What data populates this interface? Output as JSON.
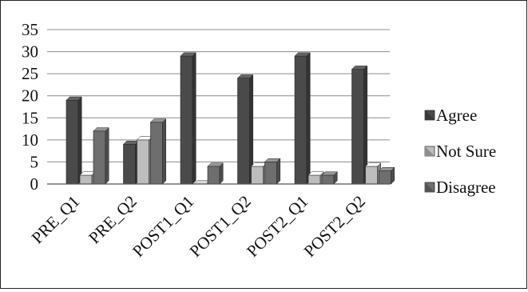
{
  "chart_data": {
    "type": "bar",
    "categories": [
      "PRE_Q1",
      "PRE_Q2",
      "POST1_Q1",
      "POST1_Q2",
      "POST2_Q1",
      "POST2_Q2"
    ],
    "series": [
      {
        "name": "Agree",
        "values": [
          19,
          9,
          29,
          24,
          29,
          26
        ],
        "color": "#4a4a4a"
      },
      {
        "name": "Not Sure",
        "values": [
          2,
          10,
          0,
          4,
          2,
          4
        ],
        "color": "#bdbdbd"
      },
      {
        "name": "Disagree",
        "values": [
          12,
          14,
          4,
          5,
          2,
          3
        ],
        "color": "#6e6e6e"
      }
    ],
    "ylim": [
      0,
      35
    ],
    "yticks": [
      0,
      5,
      10,
      15,
      20,
      25,
      30,
      35
    ],
    "grid": true,
    "legend": "right",
    "bar_style": "3d",
    "title": "",
    "xlabel": "",
    "ylabel": ""
  }
}
